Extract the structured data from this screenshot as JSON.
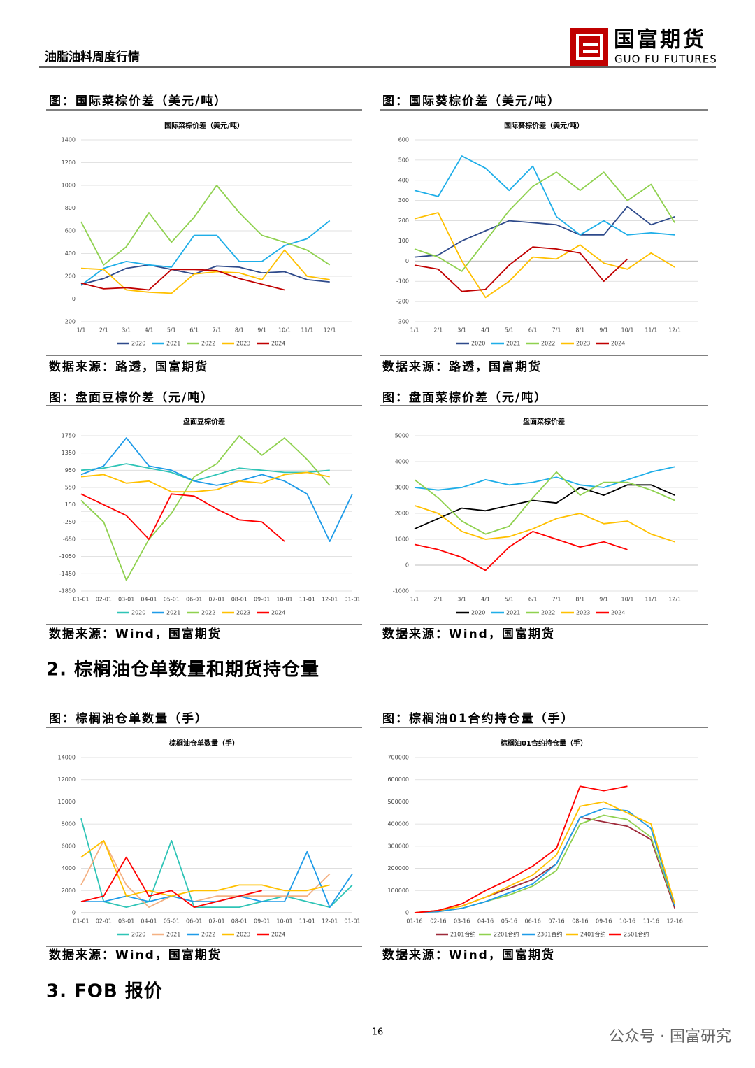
{
  "header": {
    "title": "油脂油料周度行情",
    "brand": "国富期货",
    "brand_en": "GUO FU FUTURES"
  },
  "figures": [
    {
      "caption": "图：国际菜棕价差（美元/吨）",
      "source": "数据来源：路透，国富期货"
    },
    {
      "caption": "图：国际葵棕价差（美元/吨）",
      "source": "数据来源：路透，国富期货"
    },
    {
      "caption": "图：盘面豆棕价差（元/吨）",
      "source": "数据来源：Wind，国富期货"
    },
    {
      "caption": "图：盘面菜棕价差（元/吨）",
      "source": "数据来源：Wind，国富期货"
    },
    {
      "caption": "图：棕榈油仓单数量（手）",
      "source": "数据来源：Wind，国富期货"
    },
    {
      "caption": "图：棕榈油01合约持仓量（手）",
      "source": "数据来源：Wind，国富期货"
    }
  ],
  "sections": [
    "2. 棕榈油仓单数量和期货持仓量",
    "3. FOB 报价"
  ],
  "page_number": "16",
  "footer": {
    "watermark": "公众号 · 国富研究"
  },
  "chart_data": [
    {
      "type": "line",
      "title": "国际菜棕价差（美元/吨）",
      "grid": true,
      "categories": [
        "1/1",
        "2/1",
        "3/1",
        "4/1",
        "5/1",
        "6/1",
        "7/1",
        "8/1",
        "9/1",
        "10/1",
        "11/1",
        "12/1"
      ],
      "ylim": [
        -200,
        1400
      ],
      "yticks": [
        -200,
        0,
        200,
        400,
        600,
        800,
        1000,
        1200,
        1400
      ],
      "series": [
        {
          "name": "2020",
          "color": "#2e4a8b",
          "values": [
            130,
            180,
            270,
            300,
            260,
            220,
            290,
            280,
            230,
            240,
            170,
            150
          ]
        },
        {
          "name": "2021",
          "color": "#1eaee8",
          "values": [
            120,
            270,
            330,
            300,
            280,
            560,
            560,
            330,
            330,
            470,
            530,
            690
          ]
        },
        {
          "name": "2022",
          "color": "#8fd14f",
          "values": [
            680,
            300,
            460,
            760,
            500,
            720,
            1000,
            760,
            560,
            500,
            430,
            300
          ]
        },
        {
          "name": "2023",
          "color": "#ffc000",
          "values": [
            270,
            260,
            80,
            60,
            50,
            220,
            240,
            230,
            170,
            430,
            200,
            170
          ]
        },
        {
          "name": "2024",
          "color": "#c00000",
          "values": [
            140,
            90,
            100,
            80,
            260,
            260,
            250,
            180,
            130,
            80,
            null,
            null
          ]
        }
      ]
    },
    {
      "type": "line",
      "title": "国际葵棕价差（美元/吨）",
      "grid": true,
      "categories": [
        "1/1",
        "2/1",
        "3/1",
        "4/1",
        "5/1",
        "6/1",
        "7/1",
        "8/1",
        "9/1",
        "10/1",
        "11/1",
        "12/1"
      ],
      "ylim": [
        -300,
        600
      ],
      "yticks": [
        -300,
        -200,
        -100,
        0,
        100,
        200,
        300,
        400,
        500,
        600
      ],
      "series": [
        {
          "name": "2020",
          "color": "#2e4a8b",
          "values": [
            20,
            30,
            100,
            150,
            200,
            190,
            180,
            130,
            130,
            270,
            180,
            220
          ]
        },
        {
          "name": "2021",
          "color": "#1eaee8",
          "values": [
            350,
            320,
            520,
            460,
            350,
            470,
            220,
            130,
            200,
            130,
            140,
            130
          ]
        },
        {
          "name": "2022",
          "color": "#8fd14f",
          "values": [
            60,
            20,
            -50,
            100,
            250,
            370,
            440,
            350,
            440,
            300,
            380,
            190
          ]
        },
        {
          "name": "2023",
          "color": "#ffc000",
          "values": [
            210,
            240,
            0,
            -180,
            -100,
            20,
            10,
            80,
            -10,
            -40,
            40,
            -30
          ]
        },
        {
          "name": "2024",
          "color": "#c00000",
          "values": [
            -20,
            -40,
            -150,
            -140,
            -20,
            70,
            60,
            40,
            -100,
            10,
            null,
            null
          ]
        }
      ]
    },
    {
      "type": "line",
      "title": "盘面豆棕价差",
      "grid": true,
      "categories": [
        "01-01",
        "02-01",
        "03-01",
        "04-01",
        "05-01",
        "06-01",
        "07-01",
        "08-01",
        "09-01",
        "10-01",
        "11-01",
        "12-01",
        "01-01"
      ],
      "ylim": [
        -1850,
        1750
      ],
      "yticks": [
        -1850,
        -1450,
        -1050,
        -650,
        -250,
        150,
        550,
        950,
        1350,
        1750
      ],
      "series": [
        {
          "name": "2020",
          "color": "#2ec4b6",
          "values": [
            950,
            1000,
            1100,
            1000,
            900,
            700,
            850,
            1000,
            950,
            900,
            900,
            950,
            null
          ]
        },
        {
          "name": "2021",
          "color": "#1e9be8",
          "values": [
            850,
            1050,
            1700,
            1050,
            950,
            700,
            600,
            700,
            850,
            700,
            400,
            -700,
            400
          ]
        },
        {
          "name": "2022",
          "color": "#8fd14f",
          "values": [
            250,
            -250,
            -1600,
            -650,
            -50,
            800,
            1100,
            1750,
            1300,
            1700,
            1200,
            600,
            null
          ]
        },
        {
          "name": "2023",
          "color": "#ffc000",
          "values": [
            800,
            850,
            650,
            700,
            450,
            450,
            500,
            700,
            650,
            850,
            900,
            800,
            null
          ]
        },
        {
          "name": "2024",
          "color": "#ff0000",
          "values": [
            400,
            150,
            -100,
            -650,
            400,
            350,
            50,
            -200,
            -250,
            -700,
            null,
            null,
            null
          ]
        }
      ]
    },
    {
      "type": "line",
      "title": "盘面菜棕价差",
      "grid": true,
      "categories": [
        "1/1",
        "2/1",
        "3/1",
        "4/1",
        "5/1",
        "6/1",
        "7/1",
        "8/1",
        "9/1",
        "10/1",
        "11/1",
        "12/1"
      ],
      "ylim": [
        -1000,
        5000
      ],
      "yticks": [
        -1000,
        0,
        1000,
        2000,
        3000,
        4000,
        5000
      ],
      "series": [
        {
          "name": "2020",
          "color": "#000000",
          "values": [
            1400,
            1800,
            2200,
            2100,
            2300,
            2500,
            2400,
            3000,
            2700,
            3100,
            3100,
            2700
          ]
        },
        {
          "name": "2021",
          "color": "#1eaee8",
          "values": [
            3000,
            2900,
            3000,
            3300,
            3100,
            3200,
            3400,
            3100,
            3000,
            3300,
            3600,
            3800
          ]
        },
        {
          "name": "2022",
          "color": "#8fd14f",
          "values": [
            3300,
            2600,
            1700,
            1200,
            1500,
            2600,
            3600,
            2700,
            3200,
            3200,
            2900,
            2500
          ]
        },
        {
          "name": "2023",
          "color": "#ffc000",
          "values": [
            2300,
            2000,
            1300,
            1000,
            1100,
            1400,
            1800,
            2000,
            1600,
            1700,
            1200,
            900
          ]
        },
        {
          "name": "2024",
          "color": "#ff0000",
          "values": [
            800,
            600,
            300,
            -200,
            700,
            1300,
            1000,
            700,
            900,
            600,
            null,
            null
          ]
        }
      ]
    },
    {
      "type": "line",
      "title": "棕榈油仓单数量（手）",
      "grid": true,
      "categories": [
        "01-01",
        "02-01",
        "03-01",
        "04-01",
        "05-01",
        "06-01",
        "07-01",
        "08-01",
        "09-01",
        "10-01",
        "11-01",
        "12-01",
        "01-01"
      ],
      "ylim": [
        0,
        14000
      ],
      "yticks": [
        0,
        2000,
        4000,
        6000,
        8000,
        10000,
        12000,
        14000
      ],
      "series": [
        {
          "name": "2020",
          "color": "#2ec4b6",
          "values": [
            8500,
            1000,
            500,
            1000,
            6500,
            500,
            500,
            500,
            1000,
            1500,
            1000,
            500,
            2500
          ]
        },
        {
          "name": "2021",
          "color": "#f4b183",
          "values": [
            2500,
            6500,
            2500,
            500,
            1500,
            1000,
            1500,
            1500,
            1500,
            1500,
            1500,
            3500,
            null
          ]
        },
        {
          "name": "2022",
          "color": "#1e9be8",
          "values": [
            1000,
            1000,
            1500,
            1000,
            1500,
            1000,
            1000,
            1500,
            1000,
            1000,
            5500,
            500,
            3500
          ]
        },
        {
          "name": "2023",
          "color": "#ffc000",
          "values": [
            5000,
            6500,
            1500,
            2000,
            1500,
            2000,
            2000,
            2500,
            2500,
            2000,
            2000,
            2500,
            null
          ]
        },
        {
          "name": "2024",
          "color": "#ff0000",
          "values": [
            1000,
            1500,
            5000,
            1500,
            2000,
            500,
            1000,
            1500,
            2000,
            null,
            null,
            null,
            null
          ]
        }
      ]
    },
    {
      "type": "line",
      "title": "棕榈油01合约持仓量（手）",
      "grid": true,
      "categories": [
        "01-16",
        "02-16",
        "03-16",
        "04-16",
        "05-16",
        "06-16",
        "07-16",
        "08-16",
        "09-16",
        "10-16",
        "11-16",
        "12-16"
      ],
      "ylim": [
        0,
        700000
      ],
      "yticks": [
        0,
        100000,
        200000,
        300000,
        400000,
        500000,
        600000,
        700000
      ],
      "series": [
        {
          "name": "2101合约",
          "color": "#9e2a3a",
          "values": [
            0,
            10000,
            30000,
            70000,
            110000,
            150000,
            220000,
            430000,
            410000,
            390000,
            330000,
            20000
          ]
        },
        {
          "name": "2201合约",
          "color": "#8fd14f",
          "values": [
            0,
            5000,
            20000,
            50000,
            80000,
            120000,
            190000,
            400000,
            440000,
            420000,
            340000,
            30000
          ]
        },
        {
          "name": "2301合约",
          "color": "#1e9be8",
          "values": [
            0,
            5000,
            20000,
            50000,
            90000,
            130000,
            220000,
            430000,
            470000,
            460000,
            380000,
            30000
          ]
        },
        {
          "name": "2401合约",
          "color": "#ffc000",
          "values": [
            0,
            10000,
            30000,
            70000,
            120000,
            170000,
            260000,
            480000,
            500000,
            450000,
            400000,
            40000
          ]
        },
        {
          "name": "2501合约",
          "color": "#ff0000",
          "values": [
            0,
            10000,
            40000,
            100000,
            150000,
            210000,
            290000,
            570000,
            550000,
            570000,
            null,
            null
          ]
        }
      ]
    }
  ]
}
